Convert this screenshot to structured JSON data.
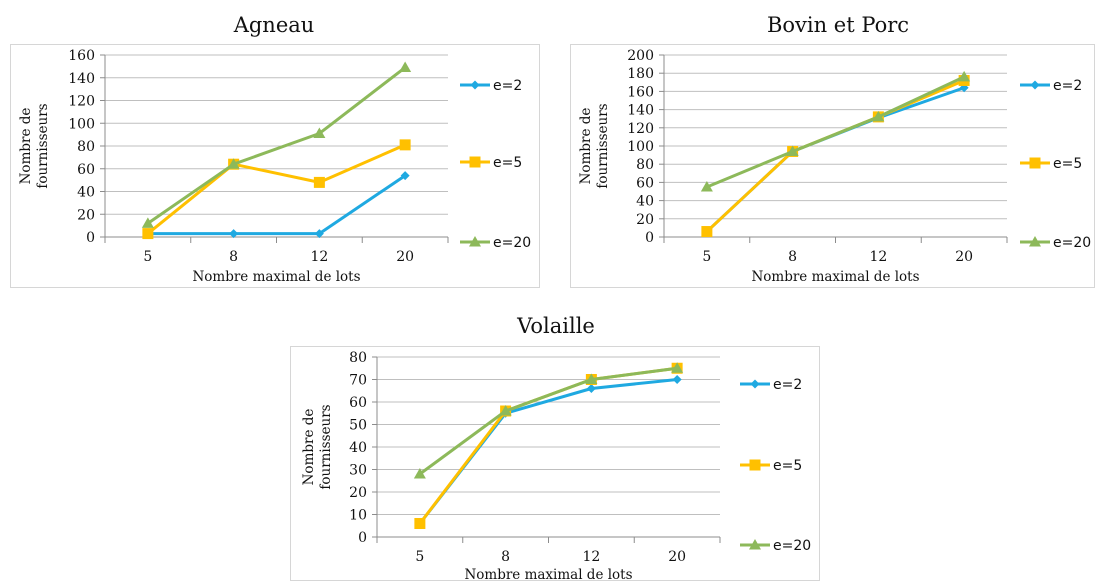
{
  "chart_data": [
    {
      "type": "line",
      "title": "Agneau",
      "xlabel": "Nombre maximal de lots",
      "ylabel": "Nombre de fournisseurs",
      "categories": [
        "5",
        "8",
        "12",
        "20"
      ],
      "ylim": [
        0,
        160
      ],
      "yticks": [
        0,
        20,
        40,
        60,
        80,
        100,
        120,
        140,
        160
      ],
      "grid": true,
      "legend": "right",
      "series": [
        {
          "name": "e=2",
          "values": [
            3,
            3,
            3,
            54
          ],
          "color": "#1fa9e1",
          "marker": "diamond"
        },
        {
          "name": "e=5",
          "values": [
            3,
            64,
            48,
            81
          ],
          "color": "#ffc000",
          "marker": "square"
        },
        {
          "name": "e=20",
          "values": [
            12,
            64,
            91,
            149
          ],
          "color": "#8db95a",
          "marker": "triangle"
        }
      ]
    },
    {
      "type": "line",
      "title": "Bovin et Porc",
      "xlabel": "Nombre maximal de lots",
      "ylabel": "Nombre de fournisseurs",
      "categories": [
        "5",
        "8",
        "12",
        "20"
      ],
      "ylim": [
        0,
        200
      ],
      "yticks": [
        0,
        20,
        40,
        60,
        80,
        100,
        120,
        140,
        160,
        180,
        200
      ],
      "grid": true,
      "legend": "right",
      "series": [
        {
          "name": "e=2",
          "values": [
            6,
            94,
            131,
            164
          ],
          "color": "#1fa9e1",
          "marker": "diamond"
        },
        {
          "name": "e=5",
          "values": [
            6,
            94,
            132,
            172
          ],
          "color": "#ffc000",
          "marker": "square"
        },
        {
          "name": "e=20",
          "values": [
            55,
            94,
            132,
            176
          ],
          "color": "#8db95a",
          "marker": "triangle"
        }
      ]
    },
    {
      "type": "line",
      "title": "Volaille",
      "xlabel": "Nombre maximal de lots",
      "ylabel": "Nombre de fournisseurs",
      "categories": [
        "5",
        "8",
        "12",
        "20"
      ],
      "ylim": [
        0,
        80
      ],
      "yticks": [
        0,
        10,
        20,
        30,
        40,
        50,
        60,
        70,
        80
      ],
      "grid": true,
      "legend": "right",
      "series": [
        {
          "name": "e=2",
          "values": [
            6,
            55,
            66,
            70
          ],
          "color": "#1fa9e1",
          "marker": "diamond"
        },
        {
          "name": "e=5",
          "values": [
            6,
            56,
            70,
            75
          ],
          "color": "#ffc000",
          "marker": "square"
        },
        {
          "name": "e=20",
          "values": [
            28,
            56,
            70,
            75
          ],
          "color": "#8db95a",
          "marker": "triangle"
        }
      ]
    }
  ]
}
